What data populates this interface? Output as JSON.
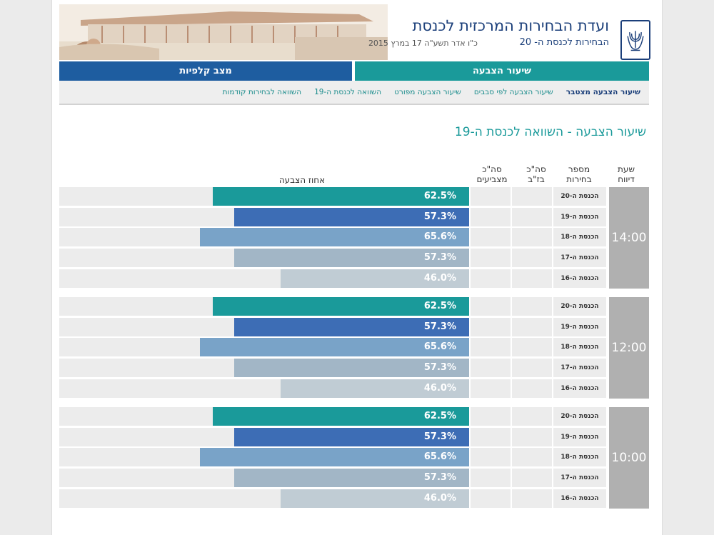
{
  "header": {
    "title": "ועדת הבחירות המרכזית לכנסת",
    "subtitle": "הבחירות לכנסת ה- 20",
    "date": "כ\"ו אדר תשע\"ה 17 במרץ 2015"
  },
  "tabs": {
    "turnout": "שיעור הצבעה",
    "ballots": "מצב קלפיות"
  },
  "subnav": [
    "שיעור הצבעה מצטבר",
    "שיעור הצבעה לפי סבבים",
    "שיעור הצבעה מפורט",
    "השוואה לכנסת ה-19",
    "השוואה לבחירות קודמות"
  ],
  "section_title": "שיעור הצבעה - השוואה לכנסת ה-19",
  "columns": {
    "hour": "שעת דיווח",
    "election": "מספר בחירות",
    "bz": "סה\"כ בז\"ב",
    "voters": "סה\"כ מצביעים",
    "percent": "אחוז הצבעה"
  },
  "colors": {
    "k20": "#1a9a9a",
    "k19": "#3d6db5",
    "k18": "#79a3c8",
    "k17": "#a2b6c6",
    "k16": "#c0ccd4"
  },
  "groups": [
    {
      "hour": "14:00",
      "rows": [
        {
          "election": "הכנסת ה-20",
          "label": "62.5%",
          "value": 62.5,
          "color": "k20"
        },
        {
          "election": "הכנסת ה-19",
          "label": "57.3%",
          "value": 57.3,
          "color": "k19"
        },
        {
          "election": "הכנסת ה-18",
          "label": "65.6%",
          "value": 65.6,
          "color": "k18"
        },
        {
          "election": "הכנסת ה-17",
          "label": "57.3%",
          "value": 57.3,
          "color": "k17"
        },
        {
          "election": "הכנסת ה-16",
          "label": "46.0%",
          "value": 46.0,
          "color": "k16"
        }
      ]
    },
    {
      "hour": "12:00",
      "rows": [
        {
          "election": "הכנסת ה-20",
          "label": "62.5%",
          "value": 62.5,
          "color": "k20"
        },
        {
          "election": "הכנסת ה-19",
          "label": "57.3%",
          "value": 57.3,
          "color": "k19"
        },
        {
          "election": "הכנסת ה-18",
          "label": "65.6%",
          "value": 65.6,
          "color": "k18"
        },
        {
          "election": "הכנסת ה-17",
          "label": "57.3%",
          "value": 57.3,
          "color": "k17"
        },
        {
          "election": "הכנסת ה-16",
          "label": "46.0%",
          "value": 46.0,
          "color": "k16"
        }
      ]
    },
    {
      "hour": "10:00",
      "rows": [
        {
          "election": "הכנסת ה-20",
          "label": "62.5%",
          "value": 62.5,
          "color": "k20"
        },
        {
          "election": "הכנסת ה-19",
          "label": "57.3%",
          "value": 57.3,
          "color": "k19"
        },
        {
          "election": "הכנסת ה-18",
          "label": "65.6%",
          "value": 65.6,
          "color": "k18"
        },
        {
          "election": "הכנסת ה-17",
          "label": "57.3%",
          "value": 57.3,
          "color": "k17"
        },
        {
          "election": "הכנסת ה-16",
          "label": "46.0%",
          "value": 46.0,
          "color": "k16"
        }
      ]
    }
  ]
}
